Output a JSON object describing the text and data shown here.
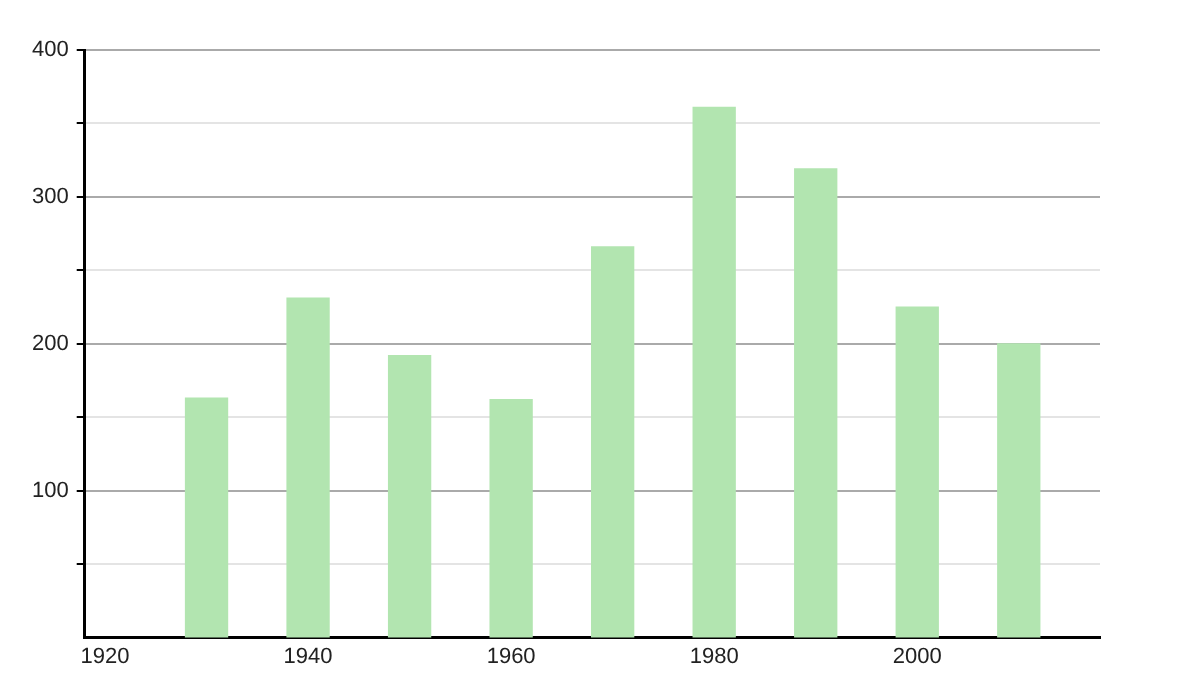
{
  "chart_data": {
    "type": "bar",
    "x": [
      1930,
      1940,
      1950,
      1960,
      1970,
      1980,
      1990,
      2000,
      2010
    ],
    "values": [
      163,
      231,
      192,
      162,
      266,
      361,
      319,
      225,
      200
    ],
    "color": "#b2e5b0",
    "xlim": [
      1918,
      2018
    ],
    "xticks": [
      1920,
      1940,
      1960,
      1980,
      2000
    ],
    "ylim": [
      0,
      400
    ],
    "yticks": [
      {
        "value": 50,
        "label": null
      },
      100,
      {
        "value": 150,
        "label": null
      },
      200,
      {
        "value": 250,
        "label": null
      },
      300,
      {
        "value": 350,
        "label": null
      },
      400
    ],
    "grid": "y",
    "legend": false
  }
}
